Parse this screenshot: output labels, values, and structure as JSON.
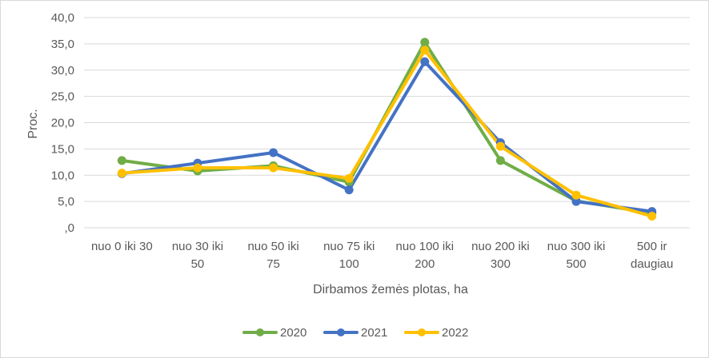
{
  "chart_data": {
    "type": "line",
    "title": "",
    "xlabel": "Dirbamos žemės plotas, ha",
    "ylabel": "Proc.",
    "ylim": [
      0,
      40
    ],
    "yticks": [
      "40,0",
      "35,0",
      "30,0",
      "25,0",
      "20,0",
      "15,0",
      "10,0",
      "5,0",
      ",0"
    ],
    "ytick_values": [
      40,
      35,
      30,
      25,
      20,
      15,
      10,
      5,
      0
    ],
    "categories": [
      [
        "nuo 0 iki 30"
      ],
      [
        "nuo 30 iki",
        "50"
      ],
      [
        "nuo 50 iki",
        "75"
      ],
      [
        "nuo 75 iki",
        "100"
      ],
      [
        "nuo 100 iki",
        "200"
      ],
      [
        "nuo 200 iki",
        "300"
      ],
      [
        "nuo 300 iki",
        "500"
      ],
      [
        "500 ir",
        "daugiau"
      ]
    ],
    "grid": true,
    "legend_position": "bottom",
    "series": [
      {
        "name": "2020",
        "color": "#70ad47",
        "values": [
          12.8,
          10.8,
          11.8,
          8.7,
          35.3,
          12.8,
          5.1,
          2.8
        ]
      },
      {
        "name": "2021",
        "color": "#4472c4",
        "values": [
          10.3,
          12.3,
          14.3,
          7.2,
          31.6,
          16.2,
          5.0,
          3.1
        ]
      },
      {
        "name": "2022",
        "color": "#ffc000",
        "values": [
          10.4,
          11.4,
          11.4,
          9.4,
          33.8,
          15.5,
          6.2,
          2.2
        ]
      }
    ]
  }
}
